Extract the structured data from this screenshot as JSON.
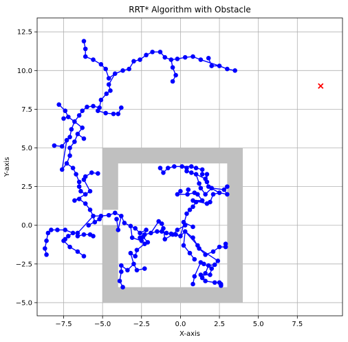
{
  "chart_data": {
    "type": "scatter",
    "title": "RRT* Algorithm with Obstacle",
    "xlabel": "X-axis",
    "ylabel": "Y-axis",
    "xlim": [
      -9.2,
      10.4
    ],
    "ylim": [
      -5.85,
      13.4
    ],
    "xticks": [
      -7.5,
      -5.0,
      -2.5,
      0.0,
      2.5,
      5.0,
      7.5
    ],
    "xtick_labels": [
      "−7.5",
      "−5.0",
      "−2.5",
      "0.0",
      "2.5",
      "5.0",
      "7.5"
    ],
    "yticks": [
      -5.0,
      -2.5,
      0.0,
      2.5,
      5.0,
      7.5,
      10.0,
      12.5
    ],
    "ytick_labels": [
      "−5.0",
      "−2.5",
      "0.0",
      "2.5",
      "5.0",
      "7.5",
      "10.0",
      "12.5"
    ],
    "grid": true,
    "obstacle": {
      "color": "#c0c0c0",
      "outer": [
        -5.0,
        -5.0,
        4.0,
        5.0
      ],
      "inner": [
        -4.0,
        -4.0,
        3.0,
        4.0
      ],
      "notch": [
        -5.0,
        0.0,
        -4.0,
        1.0
      ]
    },
    "tree_color": "#0000ff",
    "goal": {
      "x": 9.0,
      "y": 9.0,
      "color": "#ff0000",
      "marker": "x"
    },
    "nodes": [
      [
        3.5,
        10.0
      ],
      [
        3.0,
        10.1
      ],
      [
        2.5,
        10.3
      ],
      [
        2.0,
        10.3
      ],
      [
        1.8,
        10.8
      ],
      [
        1.3,
        10.7
      ],
      [
        0.8,
        10.9
      ],
      [
        0.3,
        10.85
      ],
      [
        -0.2,
        10.75
      ],
      [
        -0.6,
        10.7
      ],
      [
        -0.5,
        10.2
      ],
      [
        -0.3,
        9.7
      ],
      [
        -0.5,
        9.3
      ],
      [
        -1.0,
        10.85
      ],
      [
        -1.3,
        11.2
      ],
      [
        -1.8,
        11.2
      ],
      [
        -2.2,
        11.0
      ],
      [
        -2.6,
        10.7
      ],
      [
        -3.0,
        10.6
      ],
      [
        -3.3,
        10.1
      ],
      [
        -3.7,
        10.0
      ],
      [
        -4.2,
        9.8
      ],
      [
        -4.6,
        9.5
      ],
      [
        -4.8,
        10.1
      ],
      [
        -5.1,
        10.4
      ],
      [
        -5.6,
        10.7
      ],
      [
        -6.1,
        10.9
      ],
      [
        -6.1,
        11.4
      ],
      [
        -6.2,
        11.9
      ],
      [
        -4.6,
        9.1
      ],
      [
        -4.5,
        8.7
      ],
      [
        -4.75,
        8.5
      ],
      [
        -5.1,
        8.1
      ],
      [
        -5.2,
        7.6
      ],
      [
        -5.6,
        7.7
      ],
      [
        -6.0,
        7.65
      ],
      [
        -6.3,
        7.4
      ],
      [
        -6.5,
        7.1
      ],
      [
        -6.8,
        6.7
      ],
      [
        -7.0,
        6.2
      ],
      [
        -7.1,
        5.7
      ],
      [
        -7.3,
        5.5
      ],
      [
        -7.6,
        5.1
      ],
      [
        -8.1,
        5.15
      ],
      [
        -7.6,
        3.6
      ],
      [
        -7.3,
        4.0
      ],
      [
        -7.1,
        4.5
      ],
      [
        -7.1,
        5.0
      ],
      [
        -6.8,
        5.4
      ],
      [
        -6.6,
        5.9
      ],
      [
        -6.2,
        5.6
      ],
      [
        -6.3,
        6.3
      ],
      [
        -7.2,
        7.0
      ],
      [
        -7.5,
        6.9
      ],
      [
        -7.4,
        7.4
      ],
      [
        -7.8,
        7.8
      ],
      [
        -5.3,
        7.4
      ],
      [
        -4.8,
        7.25
      ],
      [
        -4.3,
        7.2
      ],
      [
        -4.0,
        7.2
      ],
      [
        -3.8,
        7.6
      ],
      [
        -6.9,
        3.7
      ],
      [
        -6.7,
        3.3
      ],
      [
        -6.5,
        2.8
      ],
      [
        -6.5,
        2.5
      ],
      [
        -6.4,
        2.2
      ],
      [
        -6.1,
        2.0
      ],
      [
        -5.8,
        2.2
      ],
      [
        -6.2,
        2.95
      ],
      [
        -6.1,
        3.15
      ],
      [
        -5.7,
        3.4
      ],
      [
        -5.3,
        3.35
      ],
      [
        -6.8,
        1.6
      ],
      [
        -6.5,
        1.7
      ],
      [
        -6.1,
        1.4
      ],
      [
        -5.8,
        1.0
      ],
      [
        -5.6,
        0.6
      ],
      [
        -5.1,
        0.6
      ],
      [
        -4.6,
        0.65
      ],
      [
        -4.2,
        0.8
      ],
      [
        -3.8,
        0.6
      ],
      [
        -3.6,
        0.15
      ],
      [
        -3.2,
        -0.05
      ],
      [
        -2.9,
        -0.2
      ],
      [
        -2.6,
        -0.5
      ],
      [
        -2.3,
        -0.6
      ],
      [
        -1.9,
        -0.5
      ],
      [
        -1.5,
        -0.4
      ],
      [
        -1.2,
        -0.4
      ],
      [
        -0.9,
        -0.5
      ],
      [
        -0.6,
        -0.55
      ],
      [
        -0.3,
        -0.6
      ],
      [
        0.0,
        -0.7
      ],
      [
        0.3,
        -0.4
      ],
      [
        0.8,
        -0.8
      ],
      [
        1.2,
        -1.5
      ],
      [
        1.6,
        -1.9
      ],
      [
        2.1,
        -1.7
      ],
      [
        2.5,
        -1.4
      ],
      [
        2.9,
        -1.4
      ],
      [
        2.9,
        -1.2
      ],
      [
        2.4,
        -2.3
      ],
      [
        2.2,
        -2.55
      ],
      [
        1.8,
        -2.6
      ],
      [
        1.6,
        -3.1
      ],
      [
        1.4,
        -3.4
      ],
      [
        1.6,
        -3.6
      ],
      [
        2.2,
        -3.7
      ],
      [
        2.5,
        -3.7
      ],
      [
        2.6,
        -3.9
      ],
      [
        2.6,
        -3.8
      ],
      [
        2.0,
        -2.8
      ],
      [
        1.9,
        -3.2
      ],
      [
        1.3,
        -3.2
      ],
      [
        1.5,
        -2.5
      ],
      [
        1.3,
        -2.4
      ],
      [
        0.9,
        -3.3
      ],
      [
        0.8,
        -3.8
      ],
      [
        0.2,
        -1.3
      ],
      [
        0.6,
        -1.8
      ],
      [
        0.9,
        -2.2
      ],
      [
        1.1,
        -1.3
      ],
      [
        0.4,
        0.75
      ],
      [
        0.6,
        1.0
      ],
      [
        0.8,
        1.2
      ],
      [
        1.0,
        1.5
      ],
      [
        1.4,
        1.6
      ],
      [
        1.1,
        2.0
      ],
      [
        0.9,
        2.1
      ],
      [
        0.45,
        2.0
      ],
      [
        0.5,
        2.3
      ],
      [
        -0.2,
        2.0
      ],
      [
        0.0,
        2.2
      ],
      [
        0.8,
        1.6
      ],
      [
        1.7,
        1.4
      ],
      [
        1.9,
        1.5
      ],
      [
        2.1,
        2.0
      ],
      [
        2.5,
        2.1
      ],
      [
        3.0,
        2.0
      ],
      [
        2.8,
        2.3
      ],
      [
        3.0,
        2.5
      ],
      [
        2.0,
        2.4
      ],
      [
        1.6,
        2.0
      ],
      [
        1.3,
        2.4
      ],
      [
        1.2,
        2.7
      ],
      [
        1.0,
        3.3
      ],
      [
        1.6,
        3.0
      ],
      [
        1.7,
        3.3
      ],
      [
        1.7,
        2.8
      ],
      [
        1.8,
        2.5
      ],
      [
        0.7,
        3.4
      ],
      [
        0.4,
        3.5
      ],
      [
        0.4,
        3.7
      ],
      [
        0.1,
        3.8
      ],
      [
        0.7,
        3.8
      ],
      [
        1.0,
        3.7
      ],
      [
        1.4,
        3.6
      ],
      [
        1.4,
        3.3
      ],
      [
        -0.4,
        3.8
      ],
      [
        -0.8,
        3.7
      ],
      [
        -1.1,
        3.4
      ],
      [
        -1.3,
        3.7
      ],
      [
        -1.4,
        0.25
      ],
      [
        -1.2,
        0.1
      ],
      [
        -1.1,
        -0.2
      ],
      [
        -1.0,
        -0.9
      ],
      [
        -0.5,
        -0.6
      ],
      [
        -0.2,
        -0.3
      ],
      [
        0.3,
        0.0
      ],
      [
        0.2,
        0.2
      ],
      [
        0.8,
        -0.1
      ],
      [
        -2.2,
        -0.3
      ],
      [
        -2.4,
        -0.75
      ],
      [
        -2.1,
        -1.1
      ],
      [
        -2.3,
        -1.2
      ],
      [
        -2.8,
        -1.6
      ],
      [
        -2.9,
        -2.0
      ],
      [
        -3.2,
        -1.8
      ],
      [
        -3.0,
        -2.5
      ],
      [
        -3.4,
        -2.9
      ],
      [
        -3.8,
        -2.6
      ],
      [
        -3.8,
        -3.0
      ],
      [
        -3.9,
        -3.6
      ],
      [
        -3.7,
        -4.0
      ],
      [
        -2.8,
        -2.9
      ],
      [
        -2.3,
        -2.8
      ],
      [
        -3.1,
        -0.8
      ],
      [
        -2.5,
        -1.0
      ],
      [
        -2.6,
        -0.8
      ],
      [
        -4.0,
        -0.3
      ],
      [
        -4.1,
        0.4
      ],
      [
        -5.5,
        0.2
      ],
      [
        -5.2,
        0.4
      ],
      [
        -6.6,
        -0.5
      ],
      [
        -6.6,
        -0.7
      ],
      [
        -6.2,
        -0.6
      ],
      [
        -5.8,
        -0.6
      ],
      [
        -5.6,
        -0.7
      ],
      [
        -5.9,
        0.0
      ],
      [
        -6.9,
        -0.5
      ],
      [
        -7.2,
        -0.7
      ],
      [
        -7.4,
        -0.9
      ],
      [
        -7.5,
        -1.0
      ],
      [
        -7.1,
        -1.4
      ],
      [
        -6.6,
        -1.7
      ],
      [
        -6.2,
        -2.0
      ],
      [
        -7.4,
        -0.3
      ],
      [
        -7.9,
        -0.3
      ],
      [
        -8.3,
        -0.3
      ],
      [
        -8.5,
        -0.5
      ],
      [
        -8.6,
        -1.0
      ],
      [
        -8.7,
        -1.5
      ],
      [
        -8.6,
        -1.9
      ]
    ],
    "edges": [
      [
        0,
        1
      ],
      [
        1,
        2
      ],
      [
        2,
        3
      ],
      [
        3,
        4
      ],
      [
        2,
        5
      ],
      [
        5,
        6
      ],
      [
        6,
        7
      ],
      [
        7,
        8
      ],
      [
        8,
        9
      ],
      [
        9,
        10
      ],
      [
        10,
        11
      ],
      [
        11,
        12
      ],
      [
        9,
        13
      ],
      [
        13,
        14
      ],
      [
        14,
        15
      ],
      [
        15,
        16
      ],
      [
        16,
        17
      ],
      [
        17,
        18
      ],
      [
        18,
        19
      ],
      [
        19,
        20
      ],
      [
        20,
        21
      ],
      [
        21,
        22
      ],
      [
        22,
        23
      ],
      [
        23,
        24
      ],
      [
        24,
        25
      ],
      [
        25,
        26
      ],
      [
        26,
        27
      ],
      [
        27,
        28
      ],
      [
        21,
        29
      ],
      [
        29,
        30
      ],
      [
        30,
        31
      ],
      [
        31,
        32
      ],
      [
        32,
        33
      ],
      [
        33,
        34
      ],
      [
        34,
        35
      ],
      [
        35,
        36
      ],
      [
        36,
        37
      ],
      [
        37,
        38
      ],
      [
        38,
        39
      ],
      [
        39,
        40
      ],
      [
        40,
        41
      ],
      [
        41,
        42
      ],
      [
        42,
        43
      ],
      [
        41,
        44
      ],
      [
        44,
        45
      ],
      [
        45,
        46
      ],
      [
        46,
        47
      ],
      [
        47,
        48
      ],
      [
        48,
        49
      ],
      [
        49,
        50
      ],
      [
        49,
        51
      ],
      [
        51,
        38
      ],
      [
        38,
        52
      ],
      [
        52,
        53
      ],
      [
        52,
        54
      ],
      [
        54,
        55
      ],
      [
        33,
        56
      ],
      [
        56,
        57
      ],
      [
        57,
        58
      ],
      [
        58,
        59
      ],
      [
        59,
        60
      ],
      [
        45,
        61
      ],
      [
        61,
        62
      ],
      [
        62,
        63
      ],
      [
        63,
        64
      ],
      [
        64,
        65
      ],
      [
        65,
        66
      ],
      [
        66,
        67
      ],
      [
        67,
        68
      ],
      [
        68,
        69
      ],
      [
        69,
        70
      ],
      [
        70,
        71
      ],
      [
        66,
        72
      ],
      [
        72,
        73
      ],
      [
        73,
        74
      ],
      [
        74,
        75
      ],
      [
        75,
        76
      ],
      [
        76,
        77
      ],
      [
        77,
        78
      ],
      [
        78,
        79
      ],
      [
        79,
        80
      ],
      [
        80,
        81
      ],
      [
        81,
        82
      ],
      [
        82,
        83
      ],
      [
        83,
        84
      ],
      [
        84,
        85
      ],
      [
        85,
        86
      ],
      [
        86,
        87
      ],
      [
        87,
        88
      ],
      [
        88,
        89
      ],
      [
        89,
        90
      ],
      [
        90,
        91
      ],
      [
        91,
        92
      ],
      [
        92,
        93
      ],
      [
        93,
        94
      ],
      [
        94,
        95
      ],
      [
        95,
        96
      ],
      [
        96,
        97
      ],
      [
        97,
        98
      ],
      [
        98,
        99
      ],
      [
        99,
        100
      ],
      [
        95,
        101
      ],
      [
        101,
        102
      ],
      [
        102,
        103
      ],
      [
        103,
        104
      ],
      [
        104,
        105
      ],
      [
        105,
        106
      ],
      [
        106,
        107
      ],
      [
        107,
        108
      ],
      [
        108,
        109
      ],
      [
        109,
        110
      ],
      [
        102,
        111
      ],
      [
        111,
        112
      ],
      [
        112,
        113
      ],
      [
        111,
        114
      ],
      [
        114,
        115
      ],
      [
        115,
        116
      ],
      [
        116,
        117
      ],
      [
        93,
        118
      ],
      [
        118,
        119
      ],
      [
        119,
        120
      ],
      [
        93,
        121
      ],
      [
        92,
        122
      ],
      [
        122,
        123
      ],
      [
        123,
        124
      ],
      [
        124,
        125
      ],
      [
        125,
        126
      ],
      [
        126,
        127
      ],
      [
        127,
        128
      ],
      [
        128,
        129
      ],
      [
        129,
        130
      ],
      [
        129,
        131
      ],
      [
        131,
        132
      ],
      [
        126,
        133
      ],
      [
        133,
        134
      ],
      [
        134,
        135
      ],
      [
        135,
        136
      ],
      [
        136,
        137
      ],
      [
        137,
        138
      ],
      [
        138,
        139
      ],
      [
        139,
        140
      ],
      [
        139,
        141
      ],
      [
        141,
        142
      ],
      [
        142,
        143
      ],
      [
        143,
        144
      ],
      [
        144,
        145
      ],
      [
        145,
        146
      ],
      [
        146,
        147
      ],
      [
        147,
        148
      ],
      [
        148,
        149
      ],
      [
        149,
        137
      ],
      [
        145,
        150
      ],
      [
        150,
        151
      ],
      [
        151,
        152
      ],
      [
        152,
        153
      ],
      [
        153,
        154
      ],
      [
        154,
        155
      ],
      [
        155,
        156
      ],
      [
        156,
        157
      ],
      [
        153,
        158
      ],
      [
        158,
        159
      ],
      [
        159,
        160
      ],
      [
        160,
        161
      ],
      [
        86,
        162
      ],
      [
        162,
        163
      ],
      [
        163,
        164
      ],
      [
        164,
        165
      ],
      [
        165,
        166
      ],
      [
        166,
        167
      ],
      [
        167,
        168
      ],
      [
        168,
        169
      ],
      [
        169,
        170
      ],
      [
        84,
        171
      ],
      [
        171,
        172
      ],
      [
        172,
        173
      ],
      [
        173,
        174
      ],
      [
        174,
        175
      ],
      [
        175,
        176
      ],
      [
        176,
        177
      ],
      [
        177,
        178
      ],
      [
        178,
        179
      ],
      [
        179,
        180
      ],
      [
        180,
        181
      ],
      [
        181,
        182
      ],
      [
        182,
        183
      ],
      [
        178,
        184
      ],
      [
        184,
        185
      ],
      [
        82,
        186
      ],
      [
        186,
        187
      ],
      [
        187,
        188
      ],
      [
        80,
        189
      ],
      [
        189,
        190
      ],
      [
        76,
        191
      ],
      [
        191,
        192
      ],
      [
        76,
        193
      ],
      [
        193,
        194
      ],
      [
        194,
        195
      ],
      [
        195,
        196
      ],
      [
        196,
        197
      ],
      [
        192,
        198
      ],
      [
        193,
        199
      ],
      [
        199,
        200
      ],
      [
        200,
        201
      ],
      [
        201,
        202
      ],
      [
        202,
        203
      ],
      [
        203,
        204
      ],
      [
        204,
        205
      ],
      [
        199,
        206
      ],
      [
        206,
        207
      ],
      [
        207,
        208
      ],
      [
        208,
        209
      ],
      [
        209,
        210
      ],
      [
        210,
        211
      ],
      [
        211,
        212
      ]
    ]
  }
}
